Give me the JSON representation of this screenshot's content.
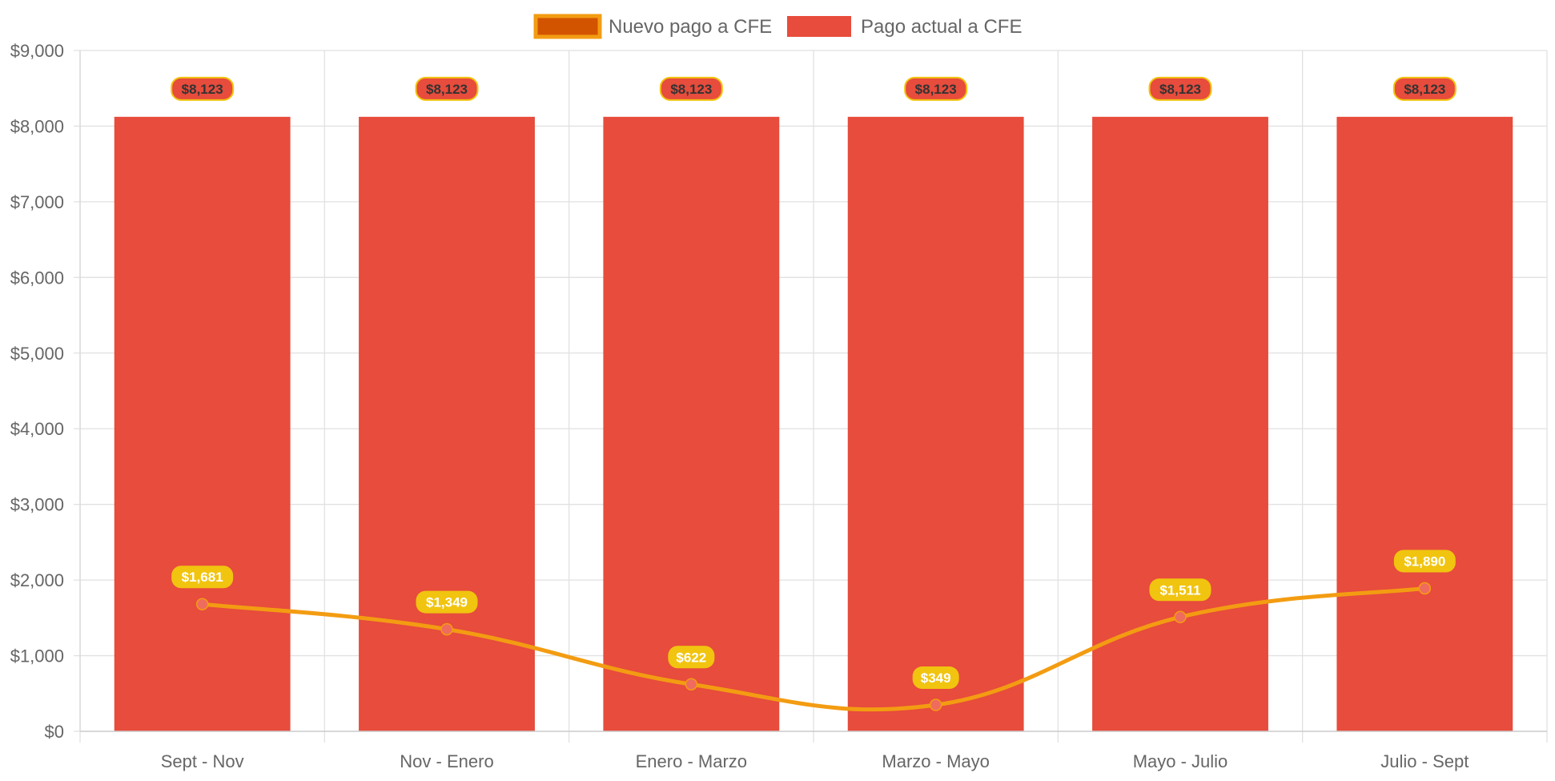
{
  "chart_data": {
    "type": "bar",
    "categories": [
      "Sept - Nov",
      "Nov - Enero",
      "Enero - Marzo",
      "Marzo - Mayo",
      "Mayo - Julio",
      "Julio - Sept"
    ],
    "series": [
      {
        "name": "Nuevo pago a CFE",
        "type": "line",
        "smooth": true,
        "values": [
          1681,
          1349,
          622,
          349,
          1511,
          1890
        ],
        "data_labels": [
          "$1,681",
          "$1,349",
          "$622",
          "$349",
          "$1,511",
          "$1,890"
        ],
        "color": "#f39c12",
        "legend_fill": "#d35400",
        "point_color": "#ef6b5e",
        "label_bg": "#f1c40f",
        "label_text_color": "#ffffff"
      },
      {
        "name": "Pago actual a CFE",
        "type": "bar",
        "values": [
          8123,
          8123,
          8123,
          8123,
          8123,
          8123
        ],
        "data_labels": [
          "$8,123",
          "$8,123",
          "$8,123",
          "$8,123",
          "$8,123",
          "$8,123"
        ],
        "color": "#e74c3c",
        "label_bg": "#e74c3c",
        "label_border": "#f1c40f",
        "label_text_color": "#333333"
      }
    ],
    "y_ticks": [
      0,
      1000,
      2000,
      3000,
      4000,
      5000,
      6000,
      7000,
      8000,
      9000
    ],
    "y_tick_labels": [
      "$0",
      "$1,000",
      "$2,000",
      "$3,000",
      "$4,000",
      "$5,000",
      "$6,000",
      "$7,000",
      "$8,000",
      "$9,000"
    ],
    "ylim": [
      0,
      9000
    ],
    "grid": true,
    "legend": "top-center",
    "title": "",
    "xlabel": "",
    "ylabel": ""
  }
}
